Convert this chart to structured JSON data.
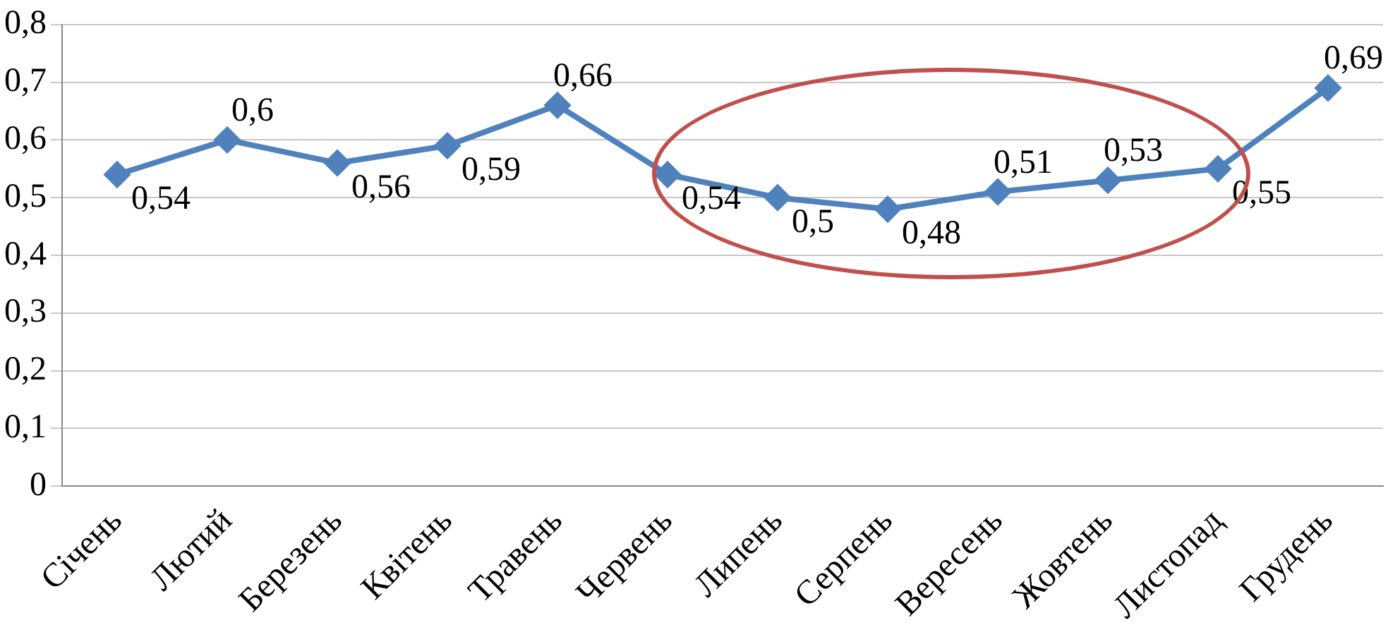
{
  "chart_data": {
    "type": "line",
    "categories": [
      "Січень",
      "Лютий",
      "Березень",
      "Квітень",
      "Травень",
      "Червень",
      "Липень",
      "Серпень",
      "Вересень",
      "Жовтень",
      "Листопад",
      "Грудень"
    ],
    "series": [
      {
        "color": "#4f81bd",
        "values": [
          0.54,
          0.6,
          0.56,
          0.59,
          0.66,
          0.54,
          0.5,
          0.48,
          0.51,
          0.53,
          0.55,
          0.69
        ],
        "value_labels": [
          "0,54",
          "0,6",
          "0,56",
          "0,59",
          "0,66",
          "0,54",
          "0,5",
          "0,48",
          "0,51",
          "0,53",
          "0,55",
          "0,69"
        ]
      }
    ],
    "ylim": [
      0,
      0.8
    ],
    "yticks": [
      {
        "value": 0,
        "label": "0"
      },
      {
        "value": 0.1,
        "label": "0,1"
      },
      {
        "value": 0.2,
        "label": "0,2"
      },
      {
        "value": 0.3,
        "label": "0,3"
      },
      {
        "value": 0.4,
        "label": "0,4"
      },
      {
        "value": 0.5,
        "label": "0,5"
      },
      {
        "value": 0.6,
        "label": "0,6"
      },
      {
        "value": 0.7,
        "label": "0,7"
      },
      {
        "value": 0.8,
        "label": "0,8"
      }
    ],
    "grid": "y",
    "legend": false,
    "marker": "diamond",
    "line_style": "solid"
  }
}
